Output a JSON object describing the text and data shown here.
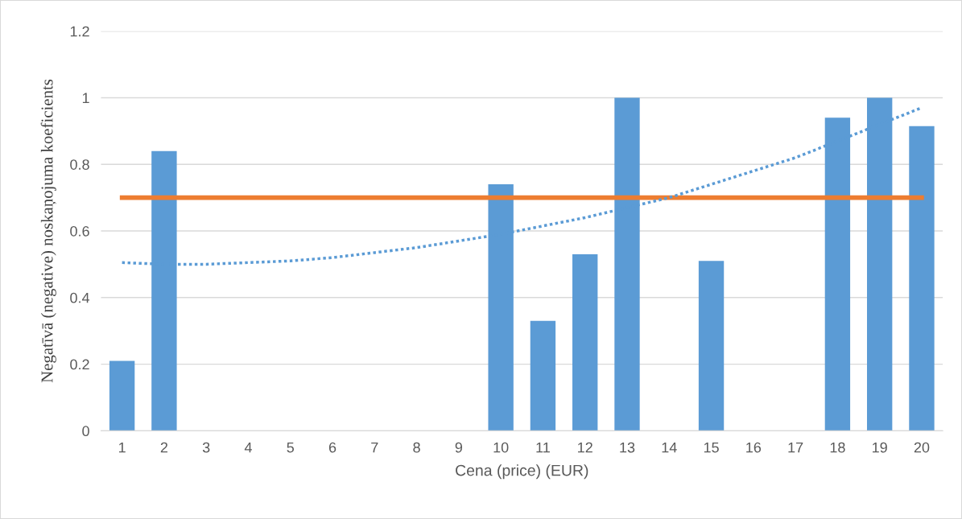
{
  "chart_data": {
    "type": "bar",
    "xlabel": "Cena (price) (EUR)",
    "ylabel": "Negatīvā (negative) noskaņojuma koeficients",
    "categories": [
      "1",
      "2",
      "3",
      "4",
      "5",
      "6",
      "7",
      "8",
      "9",
      "10",
      "11",
      "12",
      "13",
      "14",
      "15",
      "16",
      "17",
      "18",
      "19",
      "20"
    ],
    "series": [
      {
        "color": "#5b9bd5",
        "values": [
          0.21,
          0.84,
          0,
          0,
          0,
          0,
          0,
          0,
          0,
          0.74,
          0.33,
          0.53,
          1,
          0,
          0.51,
          0,
          0,
          0.94,
          1,
          0.915
        ]
      },
      {
        "type": "line",
        "color": "#ed7d31",
        "line_style": "solid",
        "values": [
          0.7,
          0.7,
          0.7,
          0.7,
          0.7,
          0.7,
          0.7,
          0.7,
          0.7,
          0.7,
          0.7,
          0.7,
          0.7,
          0.7,
          0.7,
          0.7,
          0.7,
          0.7,
          0.7,
          0.7
        ]
      },
      {
        "type": "line",
        "color": "#5b9bd5",
        "line_style": "dotted",
        "values": [
          0.505,
          0.5,
          0.5,
          0.505,
          0.51,
          0.52,
          0.535,
          0.55,
          0.57,
          0.59,
          0.615,
          0.64,
          0.67,
          0.7,
          0.74,
          0.78,
          0.82,
          0.87,
          0.92,
          0.97
        ]
      }
    ],
    "ylim": [
      0,
      1.2
    ],
    "yticks": [
      0,
      0.2,
      0.4,
      0.6,
      0.8,
      1,
      1.2
    ],
    "grid": "y"
  }
}
